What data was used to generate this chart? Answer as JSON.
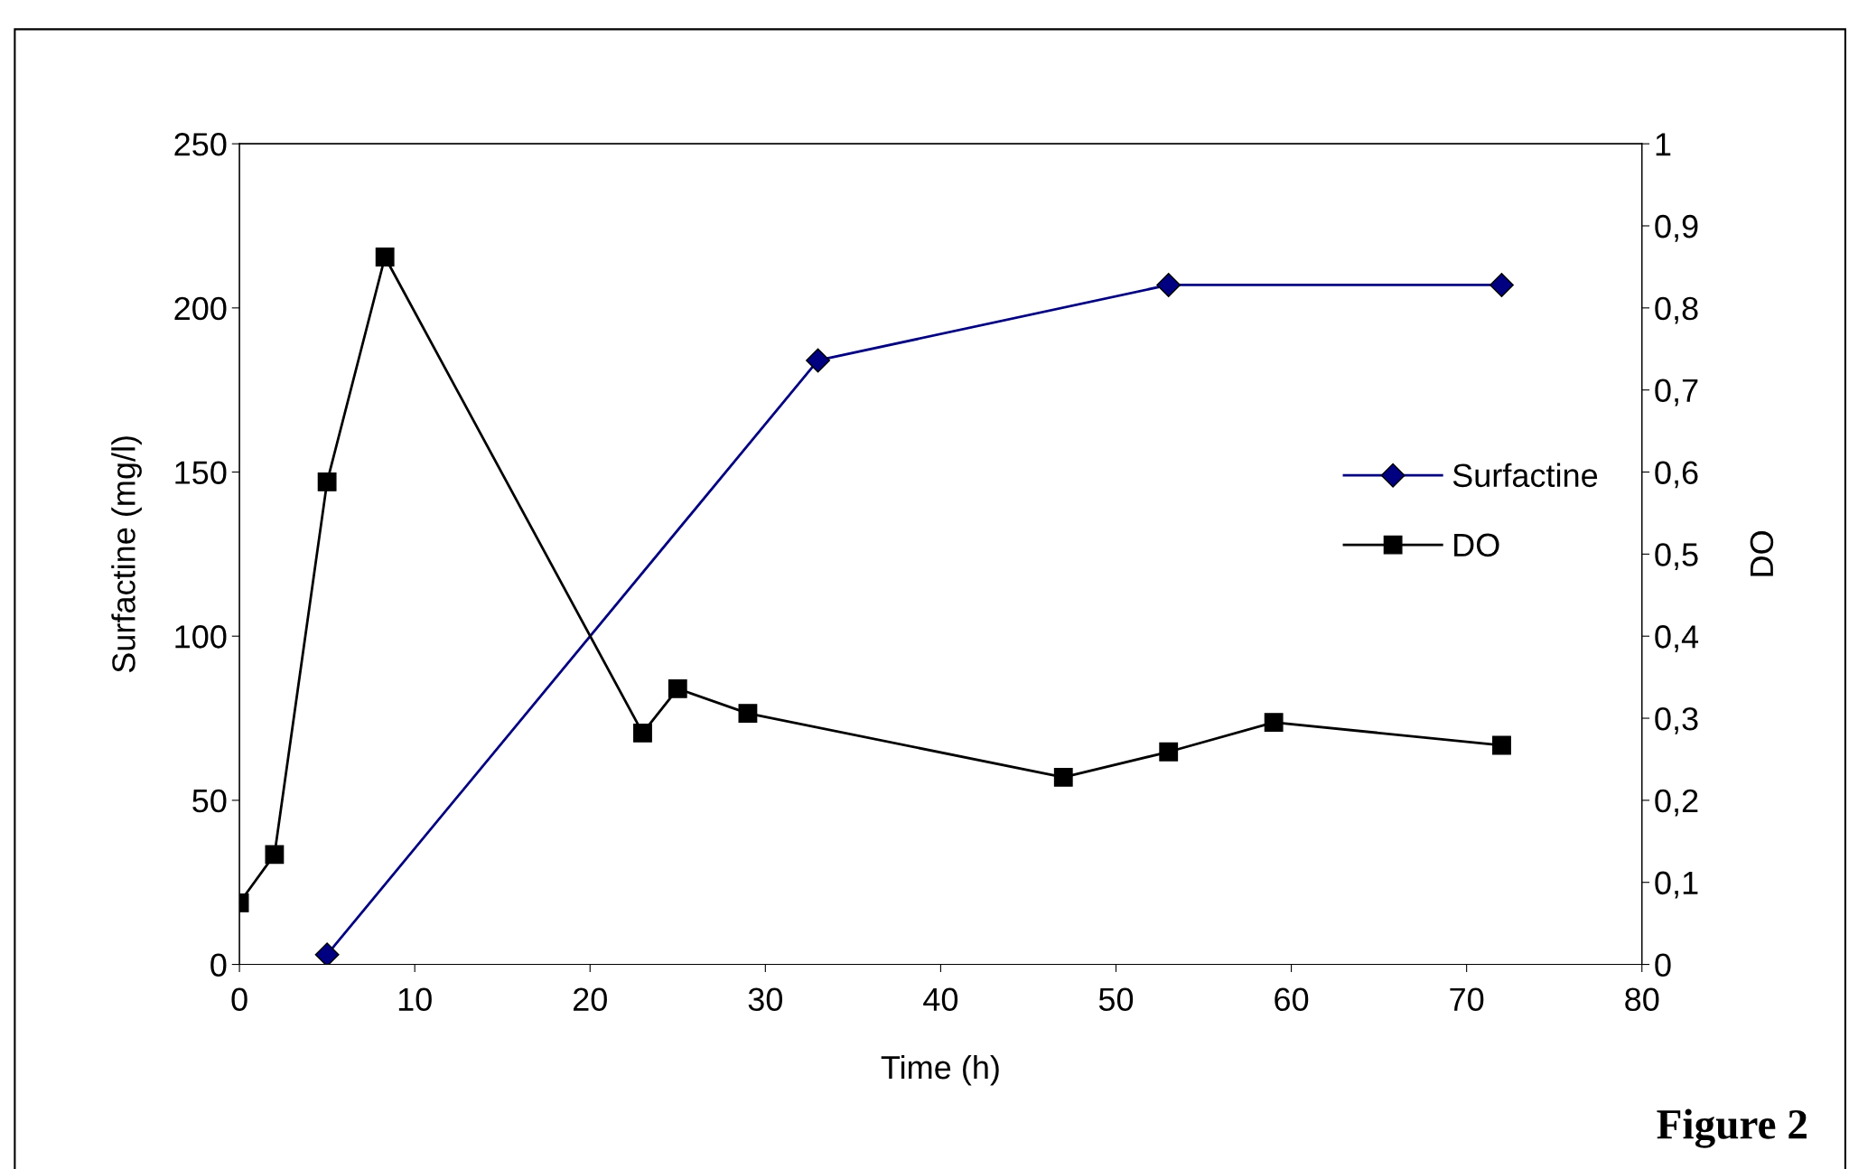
{
  "chart_data": {
    "type": "line",
    "xlabel": "Time (h)",
    "ylabel": "Surfactine (mg/l)",
    "y2label": "DO",
    "xlim": [
      0,
      80
    ],
    "xticks": [
      0,
      10,
      20,
      30,
      40,
      50,
      60,
      70,
      80
    ],
    "ylim": [
      0,
      250
    ],
    "yticks": [
      0,
      50,
      100,
      150,
      200,
      250
    ],
    "y2lim": [
      0,
      1
    ],
    "y2ticks": [
      0,
      {
        "value": 0.1,
        "label": "0,1"
      },
      {
        "value": 0.2,
        "label": "0,2"
      },
      {
        "value": 0.3,
        "label": "0,3"
      },
      {
        "value": 0.4,
        "label": "0,4"
      },
      {
        "value": 0.5,
        "label": "0,5"
      },
      {
        "value": 0.6,
        "label": "0,6"
      },
      {
        "value": 0.7,
        "label": "0,7"
      },
      {
        "value": 0.8,
        "label": "0,8"
      },
      {
        "value": 0.9,
        "label": "0,9"
      },
      1
    ],
    "legend": "center right",
    "grid": false,
    "line_style": "solid",
    "series": [
      {
        "name": "Surfactine",
        "color": "#000080",
        "marker": "diamond",
        "x": [
          5,
          33,
          53,
          72
        ],
        "values": [
          3,
          184,
          207,
          207
        ]
      },
      {
        "name": "DO",
        "color": "#000000",
        "marker": "square",
        "axis": "y2",
        "x": [
          0,
          2,
          5,
          8.3,
          23,
          25,
          29,
          47,
          53,
          59,
          72
        ],
        "values": [
          0.075,
          0.134,
          0.588,
          0.862,
          0.282,
          0.336,
          0.306,
          0.228,
          0.259,
          0.295,
          0.267
        ]
      }
    ],
    "annotations": [
      "Figure 2"
    ]
  }
}
